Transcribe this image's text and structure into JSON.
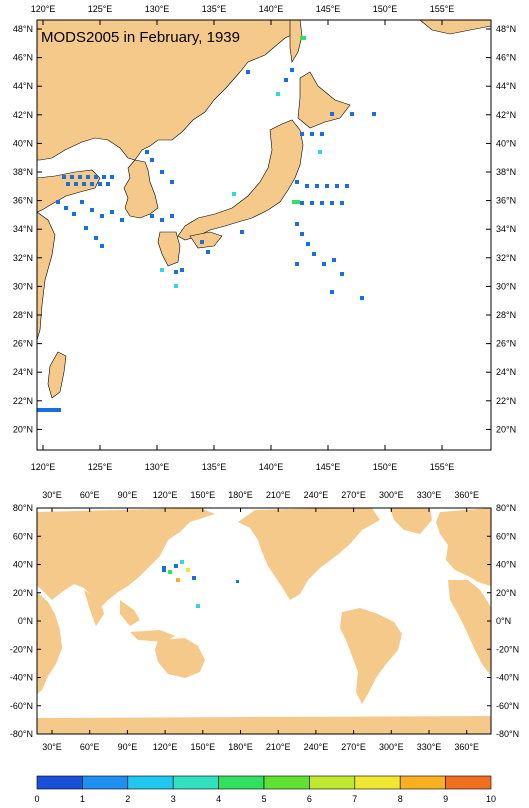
{
  "title": "MODS2005 in February, 1939",
  "colors": {
    "land": "#f4c98a",
    "sea": "#ffffff",
    "frame": "#000000"
  },
  "map_top": {
    "lon_labels": [
      "120°E",
      "125°E",
      "130°E",
      "135°E",
      "140°E",
      "145°E",
      "150°E",
      "155°E"
    ],
    "lat_labels": [
      "48°N",
      "46°N",
      "44°N",
      "42°N",
      "40°N",
      "38°N",
      "36°N",
      "34°N",
      "32°N",
      "30°N",
      "28°N",
      "26°N",
      "24°N",
      "22°N",
      "20°N"
    ]
  },
  "map_bottom": {
    "lon_labels": [
      "30°E",
      "60°E",
      "90°E",
      "120°E",
      "150°E",
      "180°E",
      "210°E",
      "240°E",
      "270°E",
      "300°E",
      "330°E",
      "360°E"
    ],
    "lat_labels": [
      "80°N",
      "60°N",
      "40°N",
      "20°N",
      "0°N",
      "-20°N",
      "-40°N",
      "-60°N",
      "-80°N"
    ]
  },
  "colorbar": {
    "labels": [
      "0",
      "1",
      "2",
      "3",
      "4",
      "5",
      "6",
      "7",
      "8",
      "9",
      "10"
    ],
    "colors": [
      "#1a4fd8",
      "#1f8ff0",
      "#20c8f0",
      "#30e0c0",
      "#30e060",
      "#60e030",
      "#c0e830",
      "#f0e830",
      "#f8b020",
      "#f07020"
    ]
  }
}
